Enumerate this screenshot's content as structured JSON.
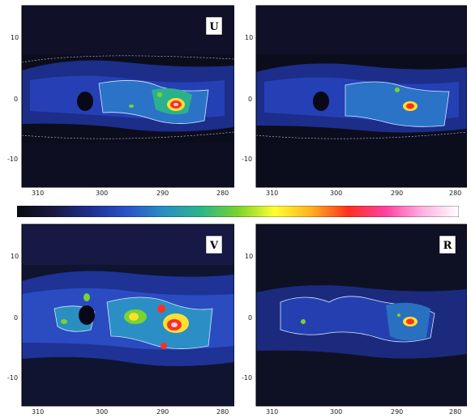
{
  "panels": [
    {
      "id": "tl",
      "label": "U",
      "show_x_ticks": true,
      "show_y_ticks": true
    },
    {
      "id": "tr",
      "label": "",
      "show_x_ticks": true,
      "show_y_ticks": true
    },
    {
      "id": "bl",
      "label": "V",
      "show_x_ticks": true,
      "show_y_ticks": true
    },
    {
      "id": "br",
      "label": "R",
      "show_x_ticks": true,
      "show_y_ticks": true
    }
  ],
  "axis": {
    "x_ticks": [
      "310",
      "300",
      "290",
      "280"
    ],
    "y_ticks": [
      "10",
      "0",
      "-10"
    ]
  },
  "colorbar": {
    "stops": [
      "#0b0b12",
      "#1a1a40",
      "#1f2f8f",
      "#2a53c8",
      "#2a8fc0",
      "#2bb58a",
      "#7ad32e",
      "#ffff30",
      "#ffb020",
      "#ff3020",
      "#ff40a0",
      "#ffb0e0",
      "#ffffff"
    ]
  }
}
